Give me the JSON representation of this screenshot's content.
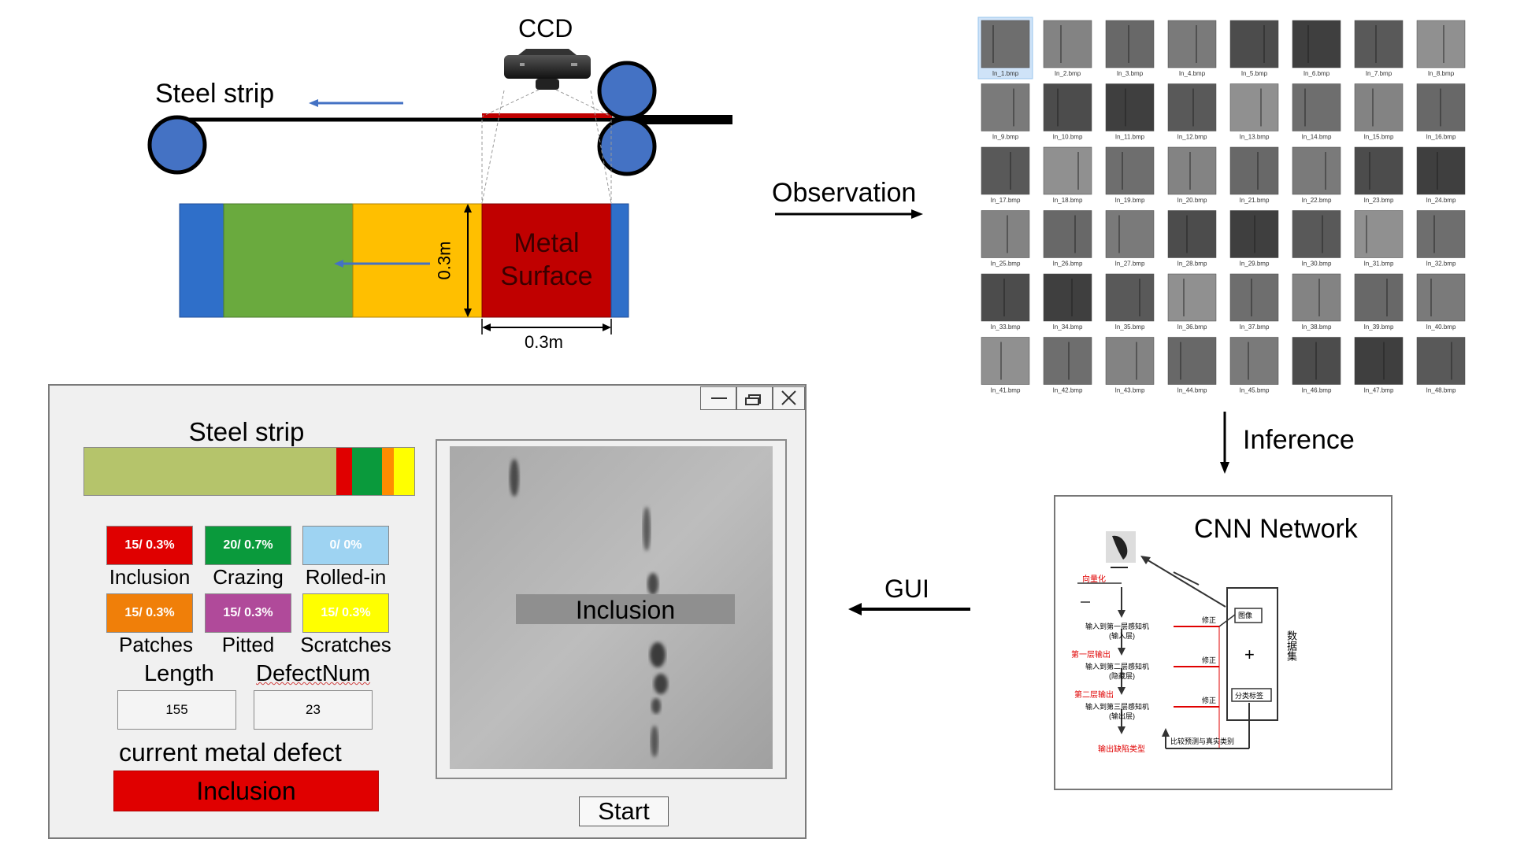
{
  "diagram": {
    "ccd_label": "CCD",
    "steel_strip_label": "Steel strip",
    "metal_surface_line1": "Metal",
    "metal_surface_line2": "Surface",
    "width_label": "0.3m",
    "length_label": "0.3m",
    "observation_label": "Observation",
    "inference_label": "Inference",
    "gui_label": "GUI",
    "cnn_title": "CNN Network",
    "colors": {
      "belt_blue": "#2f6fc9",
      "belt_green": "#6aaa3e",
      "belt_yellow": "#ffbf00",
      "metal_red": "#c00000",
      "roller_blue": "#4472c4",
      "arrow_blue": "#4472c4"
    }
  },
  "thumbnails": [
    "In_1.bmp",
    "In_2.bmp",
    "In_3.bmp",
    "In_4.bmp",
    "In_5.bmp",
    "In_6.bmp",
    "In_7.bmp",
    "In_8.bmp",
    "In_9.bmp",
    "In_10.bmp",
    "In_11.bmp",
    "In_12.bmp",
    "In_13.bmp",
    "In_14.bmp",
    "In_15.bmp",
    "In_16.bmp",
    "In_17.bmp",
    "In_18.bmp",
    "In_19.bmp",
    "In_20.bmp",
    "In_21.bmp",
    "In_22.bmp",
    "In_23.bmp",
    "In_24.bmp",
    "In_25.bmp",
    "In_26.bmp",
    "In_27.bmp",
    "In_28.bmp",
    "In_29.bmp",
    "In_30.bmp",
    "In_31.bmp",
    "In_32.bmp",
    "In_33.bmp",
    "In_34.bmp",
    "In_35.bmp",
    "In_36.bmp",
    "In_37.bmp",
    "In_38.bmp",
    "In_39.bmp",
    "In_40.bmp",
    "In_41.bmp",
    "In_42.bmp",
    "In_43.bmp",
    "In_44.bmp",
    "In_45.bmp",
    "In_46.bmp",
    "In_47.bmp",
    "In_48.bmp"
  ],
  "cnn_diagram": {
    "quantize": "向量化",
    "input_layer": "输入到第一层感知机",
    "input_layer_sub": "(输入层)",
    "layer1_out": "第一层输出",
    "hidden_layer": "输入到第二层感知机",
    "hidden_layer_sub": "(隐藏层)",
    "layer2_out": "第二层输出",
    "output_layer": "输入到第三层感知机",
    "output_layer_sub": "(输出层)",
    "output_type": "输出缺陷类型",
    "correct1": "修正",
    "correct2": "修正",
    "correct3": "修正",
    "compare": "比较预测与真实类别",
    "image_box": "图像",
    "plus": "+",
    "label_box": "分类标签",
    "dataset": "数据集"
  },
  "gui": {
    "title": "Steel strip",
    "strip_colors": [
      "#b5c46b",
      "#e00000",
      "#0a9a3c",
      "#ff8c00",
      "#ffff00"
    ],
    "stats": [
      {
        "value": "15/ 0.3%",
        "label": "Inclusion",
        "color": "#e00000"
      },
      {
        "value": "20/ 0.7%",
        "label": "Crazing",
        "color": "#0a9a3c"
      },
      {
        "value": "0/ 0%",
        "label": "Rolled-in",
        "color": "#9ed3f2"
      },
      {
        "value": "15/ 0.3%",
        "label": "Patches",
        "color": "#f07f09"
      },
      {
        "value": "15/ 0.3%",
        "label": "Pitted",
        "color": "#b04a9a"
      },
      {
        "value": "15/ 0.3%",
        "label": "Scratches",
        "color": "#ffff00"
      }
    ],
    "length_label": "Length",
    "length_value": "155",
    "defectnum_label": "DefectNum",
    "defectnum_value": "23",
    "current_defect_label": "current metal defect",
    "current_defect_value": "Inclusion",
    "preview_label": "Inclusion",
    "start_button": "Start",
    "minimize_icon": "minimize-icon",
    "restore_icon": "restore-icon",
    "close_icon": "close-icon"
  }
}
